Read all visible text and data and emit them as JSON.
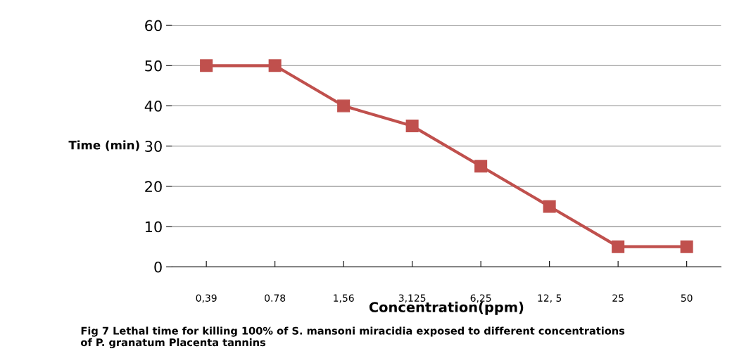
{
  "chart_data": {
    "type": "line",
    "xlabel": "Concentration(ppm)",
    "ylabel": "Time (min)",
    "categories": [
      "0,39",
      "0.78",
      "1,56",
      "3,125",
      "6,25",
      "12, 5",
      "25",
      "50"
    ],
    "series": [
      {
        "color": "#c0504d",
        "values": [
          50,
          50,
          40,
          35,
          25,
          15,
          5,
          5
        ]
      }
    ],
    "ylim": [
      0,
      60
    ],
    "yticks": [
      0,
      10,
      20,
      30,
      40,
      50,
      60
    ],
    "grid": "y",
    "marker": "square",
    "line_style": "solid",
    "legend": false,
    "annotations": [
      "Fig 7 Lethal time for killing 100% of S. mansoni miracidia exposed to different concentrations\nof P. granatum Placenta tannins"
    ]
  }
}
